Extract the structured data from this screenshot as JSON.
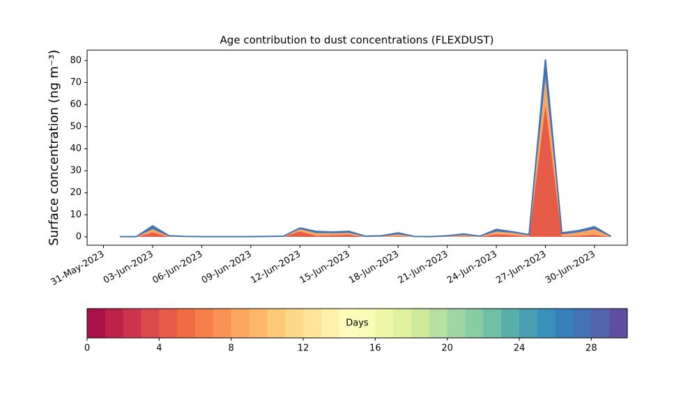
{
  "chart_data": {
    "type": "stacked-area",
    "title": "Age contribution to dust concentrations (FLEXDUST)",
    "ylabel": "Surface concentration (ng m⁻³)",
    "x": [
      "2023-06-01",
      "2023-06-02",
      "2023-06-03",
      "2023-06-04",
      "2023-06-05",
      "2023-06-06",
      "2023-06-07",
      "2023-06-08",
      "2023-06-09",
      "2023-06-10",
      "2023-06-11",
      "2023-06-12",
      "2023-06-13",
      "2023-06-14",
      "2023-06-15",
      "2023-06-16",
      "2023-06-17",
      "2023-06-18",
      "2023-06-19",
      "2023-06-20",
      "2023-06-21",
      "2023-06-22",
      "2023-06-23",
      "2023-06-24",
      "2023-06-25",
      "2023-06-26",
      "2023-06-27",
      "2023-06-28",
      "2023-06-29",
      "2023-06-30",
      "2023-07-01"
    ],
    "series": [
      {
        "color": "#e75c49",
        "values": [
          0,
          0,
          2,
          0,
          0,
          0,
          0,
          0,
          0,
          0,
          0,
          2.5,
          0.5,
          0.8,
          1,
          0,
          0,
          0.3,
          0,
          0,
          0,
          0.2,
          0,
          1.2,
          0.8,
          0.2,
          60,
          0.3,
          0.5,
          1,
          0
        ]
      },
      {
        "color": "#fca75f",
        "values": [
          0,
          0,
          1.5,
          0.2,
          0,
          0,
          0,
          0,
          0,
          0,
          0.1,
          1,
          1.2,
          0.8,
          0.8,
          0.1,
          0.2,
          0.8,
          0,
          0,
          0.2,
          0.6,
          0.1,
          1.2,
          1,
          0.4,
          12,
          0.8,
          1.5,
          2.5,
          0
        ]
      },
      {
        "color": "#4473b3",
        "values": [
          0.1,
          0.1,
          1.5,
          0.3,
          0.2,
          0.1,
          0.1,
          0.1,
          0.1,
          0.2,
          0.2,
          0.5,
          0.8,
          0.6,
          0.7,
          0.2,
          0.3,
          0.7,
          0.2,
          0.1,
          0.3,
          0.5,
          0.2,
          1.0,
          0.5,
          0.4,
          8.5,
          0.7,
          0.8,
          1.1,
          0.2
        ]
      }
    ],
    "xlim": [
      "2023-05-30",
      "2023-07-02"
    ],
    "xticks": [
      {
        "value": "2023-05-31",
        "label": "31-May-2023"
      },
      {
        "value": "2023-06-03",
        "label": "03-Jun-2023"
      },
      {
        "value": "2023-06-06",
        "label": "06-Jun-2023"
      },
      {
        "value": "2023-06-09",
        "label": "09-Jun-2023"
      },
      {
        "value": "2023-06-12",
        "label": "12-Jun-2023"
      },
      {
        "value": "2023-06-15",
        "label": "15-Jun-2023"
      },
      {
        "value": "2023-06-18",
        "label": "18-Jun-2023"
      },
      {
        "value": "2023-06-21",
        "label": "21-Jun-2023"
      },
      {
        "value": "2023-06-24",
        "label": "24-Jun-2023"
      },
      {
        "value": "2023-06-27",
        "label": "27-Jun-2023"
      },
      {
        "value": "2023-06-30",
        "label": "30-Jun-2023"
      }
    ],
    "ylim": [
      -3.8,
      84.7
    ],
    "yticks": [
      0,
      10,
      20,
      30,
      40,
      50,
      60,
      70,
      80
    ],
    "colorbar": {
      "label": "Days",
      "lim": [
        0,
        30
      ],
      "ticks": [
        0,
        4,
        8,
        12,
        16,
        20,
        24,
        28
      ],
      "colors": [
        "#a9114a",
        "#bd2148",
        "#d0344c",
        "#db4a4b",
        "#e75c49",
        "#f06d43",
        "#f67f4b",
        "#f99355",
        "#fca75f",
        "#fdb768",
        "#fdc978",
        "#fdd889",
        "#fee597",
        "#fff1a8",
        "#fffcbb",
        "#f8fcb6",
        "#eff8a6",
        "#e0f29e",
        "#cdea9d",
        "#b8e0a2",
        "#9fd6a4",
        "#86cca5",
        "#6ec1a5",
        "#5aaeaa",
        "#4a9db1",
        "#3990b8",
        "#3880ba",
        "#4473b3",
        "#5363ac",
        "#5e4fa2"
      ]
    }
  }
}
